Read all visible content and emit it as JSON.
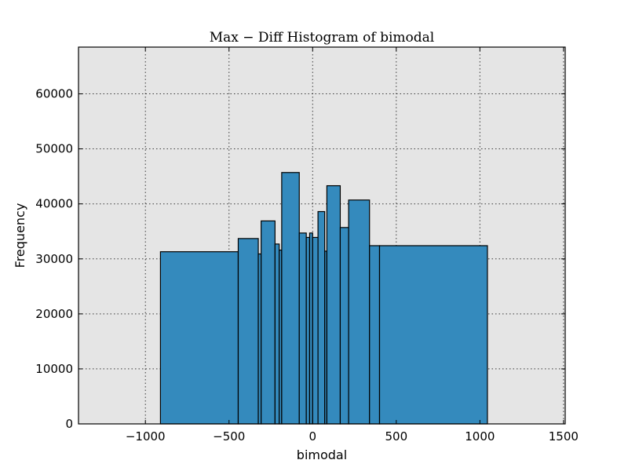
{
  "chart_data": {
    "type": "bar",
    "title": "Max − Diff Histogram of bimodal",
    "xlabel": "bimodal",
    "ylabel": "Frequency",
    "xlim": [
      -1400,
      1510
    ],
    "ylim": [
      0,
      68500
    ],
    "xticks": [
      -1000,
      -500,
      0,
      500,
      1000,
      1500
    ],
    "xtick_labels": [
      "−1000",
      "−500",
      "0",
      "500",
      "1000",
      "1500"
    ],
    "yticks": [
      0,
      10000,
      20000,
      30000,
      40000,
      50000,
      60000
    ],
    "ytick_labels": [
      "0",
      "10000",
      "20000",
      "30000",
      "40000",
      "50000",
      "60000"
    ],
    "grid": true,
    "colors": {
      "bar": "#348abd",
      "background": "#e5e5e5"
    },
    "bins": [
      {
        "left": -910,
        "right": -445,
        "value": 31300
      },
      {
        "left": -445,
        "right": -325,
        "value": 33700
      },
      {
        "left": -325,
        "right": -308,
        "value": 30900
      },
      {
        "left": -308,
        "right": -225,
        "value": 36900
      },
      {
        "left": -225,
        "right": -200,
        "value": 32700
      },
      {
        "left": -200,
        "right": -185,
        "value": 31600
      },
      {
        "left": -185,
        "right": -80,
        "value": 45700
      },
      {
        "left": -80,
        "right": -38,
        "value": 34700
      },
      {
        "left": -38,
        "right": -18,
        "value": 33900
      },
      {
        "left": -18,
        "right": 0,
        "value": 34700
      },
      {
        "left": 0,
        "right": 32,
        "value": 33900
      },
      {
        "left": 32,
        "right": 72,
        "value": 38600
      },
      {
        "left": 72,
        "right": 85,
        "value": 31400
      },
      {
        "left": 85,
        "right": 165,
        "value": 43300
      },
      {
        "left": 165,
        "right": 215,
        "value": 35700
      },
      {
        "left": 215,
        "right": 340,
        "value": 40700
      },
      {
        "left": 340,
        "right": 400,
        "value": 32400
      },
      {
        "left": 400,
        "right": 1045,
        "value": 32400
      }
    ]
  }
}
